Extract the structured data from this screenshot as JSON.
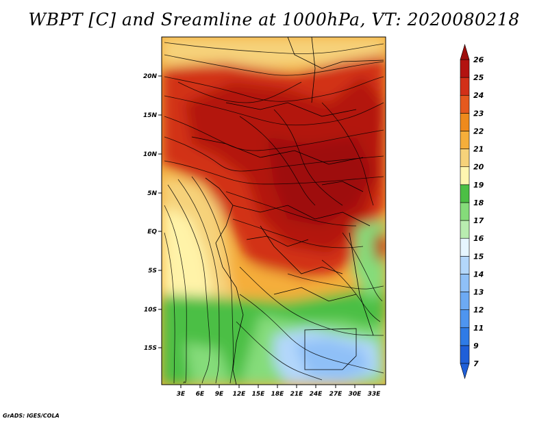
{
  "title": "WBPT [C] and Sreamline at 1000hPa, VT: 2020080218",
  "credit": "GrADS: IGES/COLA",
  "lat_labels": [
    "20N",
    "15N",
    "10N",
    "5N",
    "EQ",
    "5S",
    "10S",
    "15S"
  ],
  "lon_labels": [
    "3E",
    "6E",
    "9E",
    "12E",
    "15E",
    "18E",
    "21E",
    "24E",
    "27E",
    "30E",
    "33E"
  ],
  "colorbar": {
    "levels": [
      "7",
      "9",
      "11",
      "12",
      "13",
      "14",
      "15",
      "16",
      "17",
      "18",
      "19",
      "20",
      "21",
      "22",
      "23",
      "24",
      "25",
      "26"
    ],
    "colors": [
      "#1f5fd8",
      "#2f7be6",
      "#4e95ef",
      "#6daaf3",
      "#8fc0f7",
      "#b3d7fb",
      "#e6f6ff",
      "#b9ecb0",
      "#85dc7a",
      "#4cbf45",
      "#fff6b0",
      "#f6d27a",
      "#f5ae3a",
      "#ee8a1c",
      "#e5591e",
      "#d23018",
      "#b31310"
    ]
  },
  "chart_data": {
    "type": "heatmap",
    "variable": "WBPT [C]",
    "overlay": "Streamline",
    "level": "1000hPa",
    "valid_time": "2020080218",
    "region": {
      "lon": [
        1,
        35
      ],
      "lat": [
        -19,
        24
      ]
    },
    "value_range": [
      7,
      26
    ]
  }
}
